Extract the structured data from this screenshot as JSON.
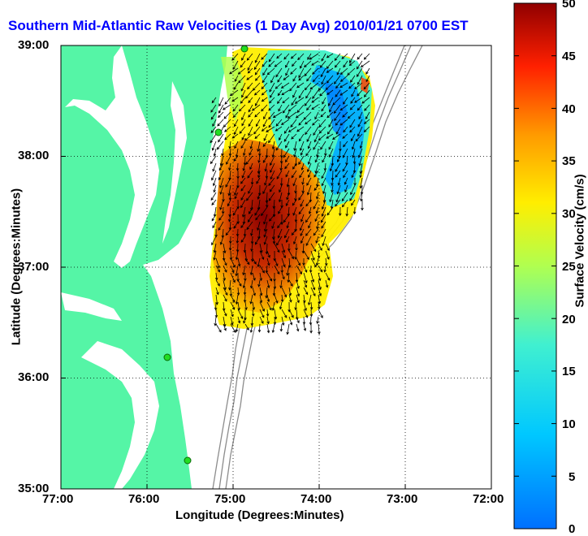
{
  "title": "Southern Mid-Atlantic Raw Velocities (1 Day Avg) 2010/01/21 0700 EST",
  "x_axis": {
    "label": "Longitude (Degrees:Minutes)",
    "ticks": [
      "77:00",
      "76:00",
      "75:00",
      "74:00",
      "73:00",
      "72:00"
    ]
  },
  "y_axis": {
    "label": "Latitude (Degrees:Minutes)",
    "ticks": [
      "39:00",
      "38:00",
      "37:00",
      "36:00",
      "35:00"
    ]
  },
  "colorbar": {
    "label": "Surface Velocity (cm/s)",
    "ticks": [
      "50",
      "45",
      "40",
      "35",
      "30",
      "25",
      "20",
      "15",
      "10",
      "5",
      "0"
    ],
    "min": 0,
    "max": 50,
    "colormap": "jet"
  },
  "map": {
    "lon_range": [
      -77,
      -72
    ],
    "lat_range": [
      35,
      39
    ],
    "land_color": "#55f5a6",
    "station_color": "#22dd22",
    "grid": "dotted"
  }
}
